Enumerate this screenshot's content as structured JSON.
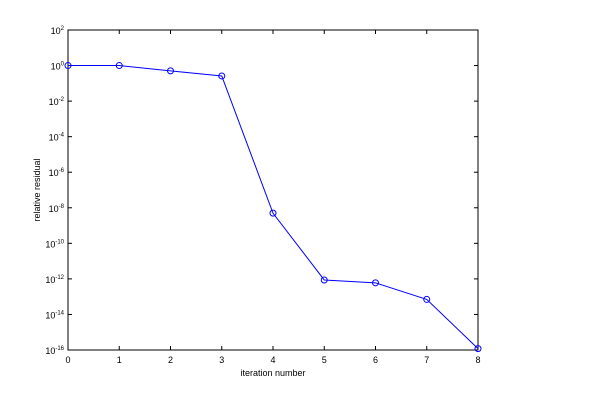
{
  "chart_data": {
    "type": "line",
    "xlabel": "iteration number",
    "ylabel": "relative residual",
    "x": [
      0,
      1,
      2,
      3,
      4,
      5,
      6,
      7,
      8
    ],
    "series": [
      {
        "color": "#0000ff",
        "marker": "o",
        "values": [
          1,
          1,
          0.5,
          0.26,
          5e-09,
          8.7e-13,
          6e-13,
          7e-14,
          1.2e-16
        ]
      }
    ],
    "xlim": [
      0,
      8
    ],
    "xticks": [
      0,
      1,
      2,
      3,
      4,
      5,
      6,
      7,
      8
    ],
    "ylim": [
      1e-16,
      100
    ],
    "ylog": true,
    "yticks": [
      {
        "value": 100,
        "label": "10^2"
      },
      {
        "value": 1,
        "label": "10^0"
      },
      {
        "value": 0.01,
        "label": "10^-2"
      },
      {
        "value": 0.0001,
        "label": "10^-4"
      },
      {
        "value": 1e-06,
        "label": "10^-6"
      },
      {
        "value": 1e-08,
        "label": "10^-8"
      },
      {
        "value": 1e-10,
        "label": "10^-10"
      },
      {
        "value": 1e-12,
        "label": "10^-12"
      },
      {
        "value": 1e-14,
        "label": "10^-14"
      },
      {
        "value": 1e-16,
        "label": "10^-16"
      }
    ]
  }
}
